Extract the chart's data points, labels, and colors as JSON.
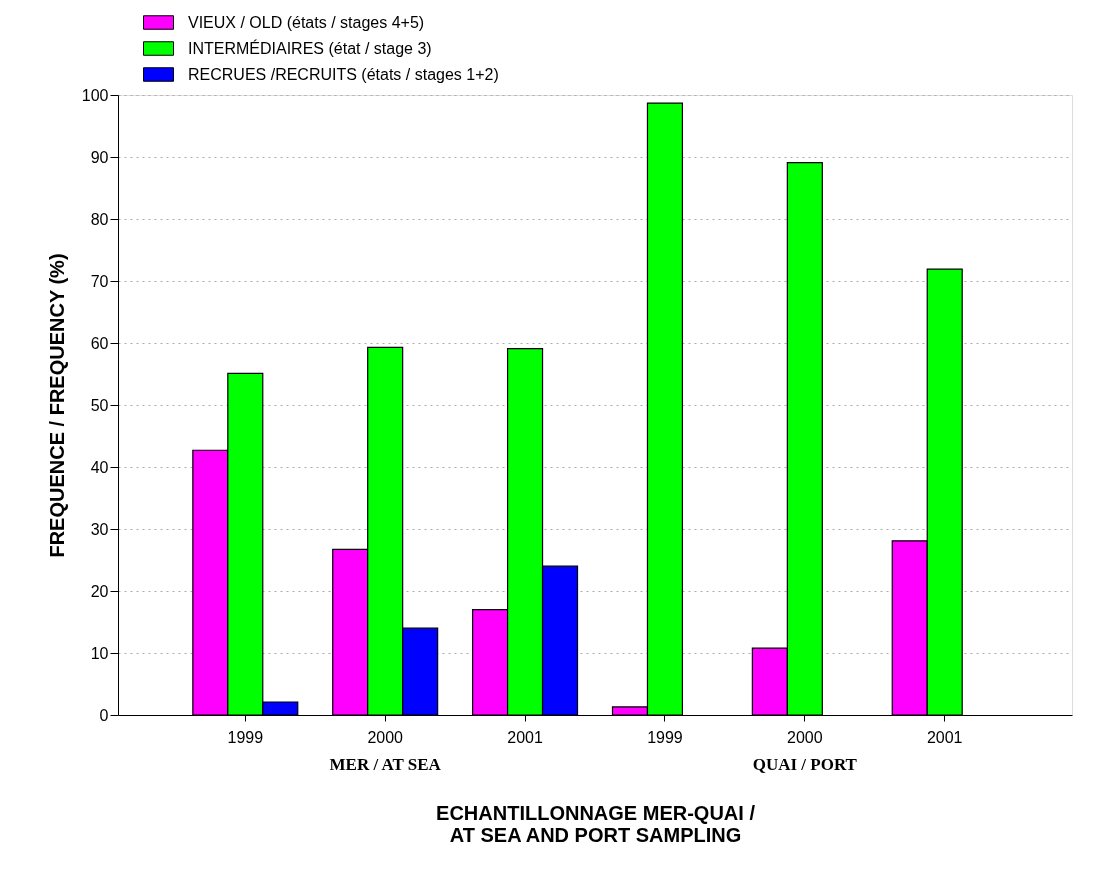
{
  "chart_data": {
    "type": "bar",
    "xlabel": "ECHANTILLONNAGE MER-QUAI /\nAT SEA AND PORT SAMPLING",
    "ylabel": "FREQUENCE / FREQUENCY (%)",
    "categories": [
      "1999",
      "2000",
      "2001",
      "1999",
      "2000",
      "2001"
    ],
    "series": [
      {
        "name": "VIEUX / OLD (états / stages 4+5)",
        "color": "#ff00ff",
        "values": [
          42.7,
          26.7,
          17.0,
          1.3,
          10.8,
          28.1
        ]
      },
      {
        "name": "INTERMÉDIAIRES (état / stage 3)",
        "color": "#00ff00",
        "values": [
          55.1,
          59.3,
          59.1,
          98.7,
          89.1,
          71.9
        ]
      },
      {
        "name": "RECRUES /RECRUITS (états / stages 1+2)",
        "color": "#0000ff",
        "values": [
          2.1,
          14.0,
          24.0,
          null,
          null,
          null
        ]
      }
    ],
    "annotations": [
      "MER / AT SEA",
      "QUAI / PORT"
    ],
    "ylim": [
      0,
      100
    ],
    "yticks": [
      0,
      10,
      20,
      30,
      40,
      50,
      60,
      70,
      80,
      90,
      100
    ],
    "grid": "y",
    "legend": "top left"
  }
}
